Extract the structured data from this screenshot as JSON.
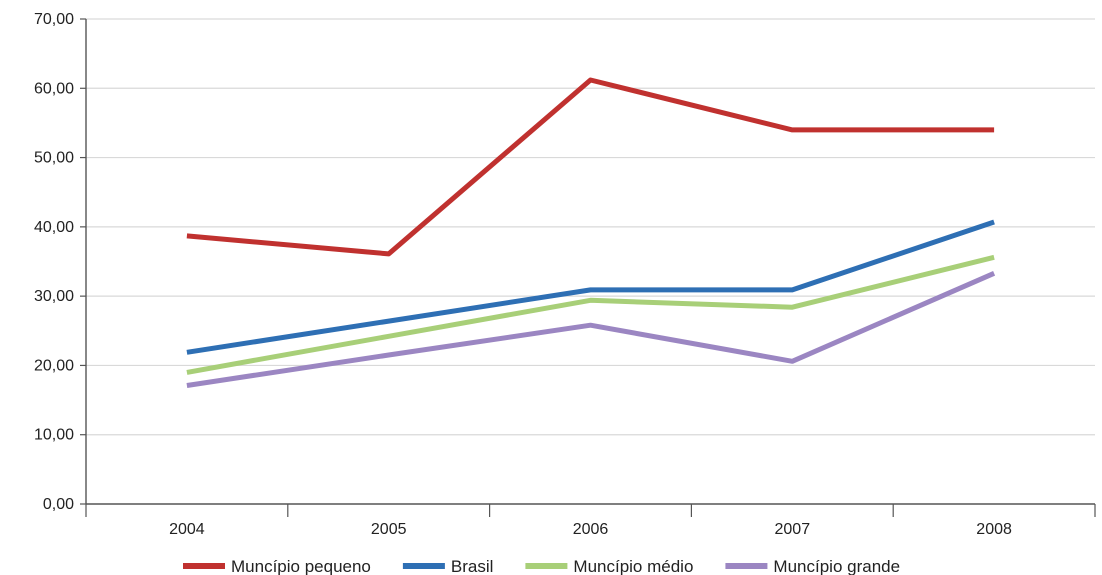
{
  "chart_data": {
    "type": "line",
    "title": "",
    "xlabel": "",
    "ylabel": "",
    "categories": [
      "2004",
      "2005",
      "2006",
      "2007",
      "2008"
    ],
    "ylim": [
      0,
      70
    ],
    "yticks": [
      "0,00",
      "10,00",
      "20,00",
      "30,00",
      "40,00",
      "50,00",
      "60,00",
      "70,00"
    ],
    "grid": true,
    "legend_position": "bottom",
    "series": [
      {
        "name": "Muncípio pequeno",
        "color": "#c0312f",
        "values": [
          38.7,
          36.1,
          61.2,
          54.0,
          54.0
        ]
      },
      {
        "name": "Brasil",
        "color": "#2e6fb4",
        "values": [
          21.9,
          26.4,
          30.9,
          30.9,
          40.7
        ]
      },
      {
        "name": "Muncípio médio",
        "color": "#a8cf78",
        "values": [
          19.0,
          24.2,
          29.4,
          28.4,
          35.6
        ]
      },
      {
        "name": "Muncípio  grande",
        "color": "#9b86c2",
        "values": [
          17.1,
          21.5,
          25.8,
          20.6,
          33.3
        ]
      }
    ]
  }
}
